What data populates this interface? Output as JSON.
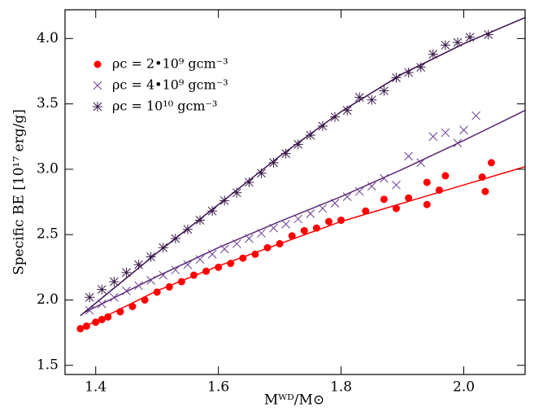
{
  "chart_data": {
    "type": "scatter",
    "x_label": "Mᵂᴰ/M⊙",
    "y_label": "Specific BE [10¹⁷ erg/g]",
    "xlim": [
      1.35,
      2.1
    ],
    "xticks": [
      1.4,
      1.6,
      1.8,
      {
        "value": 2,
        "label": "2.0"
      }
    ],
    "ylim": [
      1.43,
      4.22
    ],
    "yticks": [
      1.5,
      {
        "value": 2,
        "label": "2.0"
      },
      2.5,
      {
        "value": 3,
        "label": "3.0"
      },
      3.5,
      {
        "value": 4,
        "label": "4.0"
      }
    ],
    "legend": "upper-left",
    "series": [
      {
        "name": "ρc = 2•10⁹ gcm⁻³",
        "color": "#ff0000",
        "marker": "circle",
        "x": [
          1.375,
          1.385,
          1.4,
          1.41,
          1.42,
          1.44,
          1.46,
          1.48,
          1.5,
          1.52,
          1.54,
          1.56,
          1.58,
          1.6,
          1.62,
          1.64,
          1.66,
          1.68,
          1.7,
          1.72,
          1.74,
          1.76,
          1.78,
          1.8,
          1.84,
          1.87,
          1.89,
          1.91,
          1.94,
          1.94,
          1.96,
          1.97,
          2.03,
          2.035,
          2.045
        ],
        "values": [
          1.78,
          1.8,
          1.83,
          1.85,
          1.87,
          1.91,
          1.95,
          2.0,
          2.06,
          2.1,
          2.14,
          2.19,
          2.22,
          2.25,
          2.28,
          2.32,
          2.35,
          2.4,
          2.43,
          2.49,
          2.53,
          2.55,
          2.6,
          2.61,
          2.68,
          2.77,
          2.7,
          2.78,
          2.9,
          2.73,
          2.84,
          2.95,
          2.94,
          2.83,
          3.05
        ]
      },
      {
        "name": "ρc = 4•10⁹ gcm⁻³",
        "color": "#6b3d8f",
        "marker": "cross",
        "x": [
          1.39,
          1.41,
          1.43,
          1.45,
          1.47,
          1.49,
          1.51,
          1.53,
          1.55,
          1.57,
          1.59,
          1.61,
          1.63,
          1.65,
          1.67,
          1.69,
          1.71,
          1.73,
          1.75,
          1.77,
          1.79,
          1.81,
          1.83,
          1.85,
          1.87,
          1.89,
          1.91,
          1.93,
          1.95,
          1.97,
          1.99,
          2.0,
          2.02
        ],
        "values": [
          1.92,
          1.97,
          2.02,
          2.07,
          2.11,
          2.15,
          2.19,
          2.23,
          2.27,
          2.31,
          2.35,
          2.39,
          2.43,
          2.47,
          2.51,
          2.55,
          2.58,
          2.62,
          2.66,
          2.7,
          2.74,
          2.79,
          2.83,
          2.87,
          2.93,
          2.88,
          3.1,
          3.05,
          3.25,
          3.28,
          3.2,
          3.3,
          3.41
        ]
      },
      {
        "name": "ρc = 10¹⁰ gcm⁻³",
        "color": "#3a1a4a",
        "marker": "asterisk",
        "x": [
          1.39,
          1.41,
          1.43,
          1.45,
          1.47,
          1.49,
          1.51,
          1.53,
          1.55,
          1.57,
          1.59,
          1.61,
          1.63,
          1.65,
          1.67,
          1.69,
          1.71,
          1.73,
          1.75,
          1.77,
          1.79,
          1.81,
          1.83,
          1.85,
          1.87,
          1.89,
          1.91,
          1.93,
          1.95,
          1.97,
          1.99,
          2.01,
          2.04
        ],
        "values": [
          2.02,
          2.08,
          2.14,
          2.21,
          2.27,
          2.33,
          2.4,
          2.47,
          2.54,
          2.61,
          2.68,
          2.76,
          2.82,
          2.9,
          2.97,
          3.05,
          3.12,
          3.19,
          3.26,
          3.33,
          3.4,
          3.45,
          3.55,
          3.53,
          3.6,
          3.7,
          3.74,
          3.78,
          3.88,
          3.95,
          3.97,
          4.01,
          4.03
        ]
      }
    ],
    "fit_lines": [
      {
        "color": "#ff0000",
        "x": [
          1.375,
          1.5,
          1.6,
          1.7,
          1.8,
          1.9,
          2.0,
          2.1
        ],
        "values": [
          1.78,
          2.07,
          2.26,
          2.43,
          2.6,
          2.74,
          2.88,
          3.02
        ]
      },
      {
        "color": "#5a2a78",
        "x": [
          1.38,
          1.5,
          1.6,
          1.7,
          1.8,
          1.9,
          2.0,
          2.1
        ],
        "values": [
          1.9,
          2.18,
          2.4,
          2.6,
          2.79,
          3.0,
          3.22,
          3.45
        ]
      },
      {
        "color": "#3b0f4f",
        "x": [
          1.375,
          1.5,
          1.6,
          1.7,
          1.8,
          1.9,
          2.0,
          2.1
        ],
        "values": [
          1.88,
          2.36,
          2.73,
          3.1,
          3.44,
          3.73,
          3.96,
          4.16
        ]
      }
    ]
  }
}
